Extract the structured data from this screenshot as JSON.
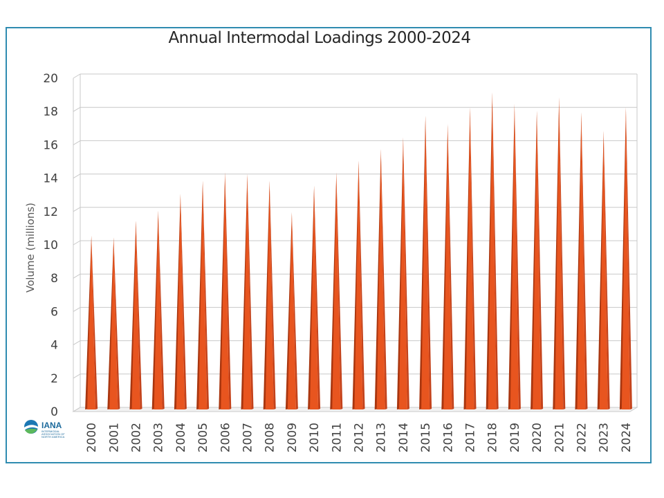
{
  "colors": {
    "bar_face": "#e8551f",
    "bar_dark": "#a9360f",
    "bar_side": "#c4421a",
    "frame": "#2e8bb0",
    "grid": "#c8c8c8",
    "text": "#404040"
  },
  "logo": {
    "name": "IANA",
    "subtitle": "INTERMODAL ASSOCIATION OF NORTH AMERICA"
  },
  "chart_data": {
    "type": "bar",
    "style": "3d-cone",
    "title": "Annual Intermodal Loadings 2000-2024",
    "xlabel": "",
    "ylabel": "Volume (millions)",
    "ylim": [
      0,
      20
    ],
    "yticks": [
      "0",
      "2",
      "4",
      "6",
      "8",
      "10",
      "12",
      "14",
      "16",
      "18",
      "20"
    ],
    "grid": true,
    "legend": "none",
    "categories": [
      "2000",
      "2001",
      "2002",
      "2003",
      "2004",
      "2005",
      "2006",
      "2007",
      "2008",
      "2009",
      "2010",
      "2011",
      "2012",
      "2013",
      "2014",
      "2015",
      "2016",
      "2017",
      "2018",
      "2019",
      "2020",
      "2021",
      "2022",
      "2023",
      "2024"
    ],
    "values": [
      10.3,
      10.2,
      11.2,
      11.8,
      12.8,
      13.6,
      14.1,
      14.0,
      13.6,
      11.7,
      13.3,
      14.1,
      14.8,
      15.5,
      16.2,
      17.5,
      17.0,
      18.0,
      18.9,
      18.2,
      17.8,
      18.6,
      17.7,
      16.6,
      18.0
    ]
  }
}
